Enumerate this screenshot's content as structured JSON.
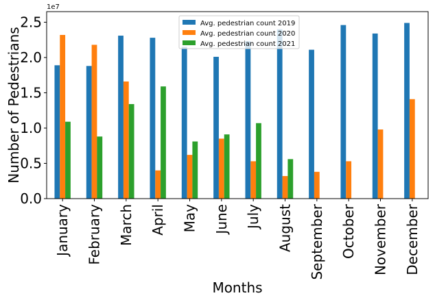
{
  "chart_data": {
    "type": "bar",
    "title": "",
    "xlabel": "Months",
    "ylabel": "Number of Pedestrians",
    "y_offset_label": "1e7",
    "ylim": [
      0,
      26500000
    ],
    "yticks": [
      0,
      5000000,
      10000000,
      15000000,
      20000000,
      25000000
    ],
    "ytick_labels": [
      "0.0",
      "0.5",
      "1.0",
      "1.5",
      "2.0",
      "2.5"
    ],
    "categories": [
      "January",
      "February",
      "March",
      "April",
      "May",
      "June",
      "July",
      "August",
      "September",
      "October",
      "November",
      "December"
    ],
    "series": [
      {
        "name": "Avg. pedestrian count 2019",
        "color": "#1f77b4",
        "values": [
          18900000,
          18800000,
          23100000,
          22800000,
          21500000,
          20100000,
          22300000,
          24000000,
          21100000,
          24600000,
          23400000,
          24900000
        ]
      },
      {
        "name": "Avg. pedestrian count 2020",
        "color": "#ff7f0e",
        "values": [
          23200000,
          21800000,
          16600000,
          4000000,
          6200000,
          8500000,
          5300000,
          3200000,
          3800000,
          5300000,
          9800000,
          14100000
        ]
      },
      {
        "name": "Avg. pedestrian count 2021",
        "color": "#2ca02c",
        "values": [
          10900000,
          8800000,
          13400000,
          15900000,
          8100000,
          9100000,
          10700000,
          5600000,
          null,
          null,
          null,
          null
        ]
      }
    ],
    "legend_position": "top-center",
    "grid": false
  }
}
